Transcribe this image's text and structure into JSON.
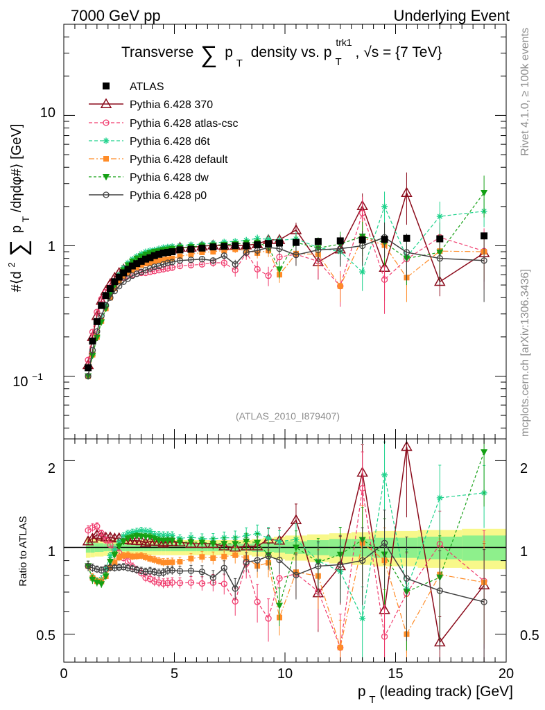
{
  "header": {
    "left": "7000 GeV pp",
    "right": "Underlying Event"
  },
  "side": {
    "rivet": "Rivet 4.1.0, ≥ 100k events",
    "mcplots": "mcplots.cern.ch [arXiv:1306.3436]"
  },
  "colors": {
    "atlas": "#000000",
    "p370": "#8b0c1c",
    "atlas_csc": "#f03c6e",
    "d6t": "#1ed28c",
    "default": "#ff8c28",
    "dw": "#14a014",
    "p0": "#404040",
    "band_inner": "#8ef08c",
    "band_outer": "#f8f88a"
  },
  "chart_data": [
    {
      "id": "main",
      "type": "line",
      "title": "Transverse ∑ p_T density vs. p_T^trk1, √s = {7 TeV}",
      "title_parts": {
        "pre": "Transverse",
        "sum": "∑",
        "p": "p",
        "sub_t": "T",
        "mid": "density vs. p",
        "sup_trk1": "trk1",
        "sub_t2": "T",
        "post": ", √s = {7 TeV}"
      },
      "ylabel": "#⟨d² ∑ p_T /dηdφ#⟩ [GeV]",
      "ylabel_parts": {
        "pre": "#⟨d",
        "sup2": "2",
        "sum": "∑",
        "p": "p",
        "sub_t": "T",
        "post": " /dηdφ#⟩ [GeV]"
      },
      "analysis_tag": "(ATLAS_2010_I879407)",
      "yscale": "log",
      "xlim": [
        0,
        20
      ],
      "ylim": [
        0.033,
        50
      ],
      "yticks": [
        0.1,
        1,
        10
      ],
      "ytick_labels": {
        "one": "1",
        "ten": "10",
        "tenth_base": "10",
        "tenth_exp": "−1"
      },
      "legend_position": "top-left",
      "legend": [
        "ATLAS",
        "Pythia 6.428 370",
        "Pythia 6.428 atlas-csc",
        "Pythia 6.428 d6t",
        "Pythia 6.428 default",
        "Pythia 6.428 dw",
        "Pythia 6.428 p0"
      ],
      "x": [
        1.1,
        1.3,
        1.5,
        1.7,
        1.9,
        2.1,
        2.3,
        2.5,
        2.7,
        2.9,
        3.1,
        3.3,
        3.5,
        3.7,
        3.9,
        4.1,
        4.3,
        4.5,
        4.7,
        4.9,
        5.25,
        5.75,
        6.25,
        6.75,
        7.25,
        7.75,
        8.25,
        8.75,
        9.25,
        9.75,
        10.5,
        11.5,
        12.5,
        13.5,
        14.5,
        15.5,
        17.0,
        19.0
      ],
      "series": [
        {
          "key": "atlas",
          "name": "ATLAS",
          "marker": "square-filled",
          "values": [
            0.116,
            0.186,
            0.262,
            0.348,
            0.415,
            0.47,
            0.53,
            0.575,
            0.62,
            0.66,
            0.7,
            0.73,
            0.76,
            0.79,
            0.81,
            0.84,
            0.86,
            0.88,
            0.89,
            0.9,
            0.93,
            0.94,
            0.96,
            0.98,
            0.99,
            1.0,
            1.0,
            1.02,
            1.04,
            1.05,
            1.06,
            1.08,
            1.09,
            1.11,
            1.12,
            1.14,
            1.13,
            1.19
          ]
        },
        {
          "key": "p370",
          "name": "Pythia 6.428 370",
          "marker": "triangle-open",
          "lw": 1.5,
          "values": [
            0.122,
            0.2,
            0.29,
            0.38,
            0.45,
            0.51,
            0.57,
            0.62,
            0.66,
            0.7,
            0.74,
            0.77,
            0.8,
            0.82,
            0.85,
            0.88,
            0.9,
            0.91,
            0.93,
            0.94,
            0.97,
            0.97,
            0.99,
            1.01,
            1.0,
            1.0,
            1.01,
            1.03,
            1.11,
            1.11,
            1.32,
            0.75,
            0.94,
            2.02,
            0.68,
            2.55,
            0.53,
            0.88
          ],
          "err": [
            0.004,
            0.006,
            0.008,
            0.01,
            0.012,
            0.013,
            0.015,
            0.016,
            0.017,
            0.018,
            0.02,
            0.021,
            0.022,
            0.023,
            0.024,
            0.025,
            0.026,
            0.027,
            0.028,
            0.03,
            0.03,
            0.035,
            0.04,
            0.045,
            0.05,
            0.06,
            0.07,
            0.08,
            0.1,
            0.12,
            0.18,
            0.2,
            0.25,
            0.5,
            0.3,
            1.1,
            0.12,
            0.35
          ]
        },
        {
          "key": "atlas_csc",
          "name": "Pythia 6.428 atlas-csc",
          "marker": "circle-open",
          "dash": "5,3",
          "values": [
            0.133,
            0.218,
            0.31,
            0.39,
            0.44,
            0.48,
            0.52,
            0.55,
            0.57,
            0.59,
            0.6,
            0.61,
            0.62,
            0.62,
            0.63,
            0.64,
            0.65,
            0.66,
            0.67,
            0.68,
            0.7,
            0.71,
            0.72,
            0.74,
            0.74,
            0.65,
            0.88,
            0.66,
            0.59,
            0.82,
            0.86,
            0.76,
            0.49,
            1.78,
            0.55,
            0.79,
            1.16,
            0.91
          ],
          "err": [
            0.005,
            0.007,
            0.009,
            0.01,
            0.012,
            0.013,
            0.014,
            0.015,
            0.016,
            0.017,
            0.018,
            0.019,
            0.02,
            0.021,
            0.022,
            0.023,
            0.024,
            0.025,
            0.026,
            0.027,
            0.03,
            0.035,
            0.04,
            0.05,
            0.06,
            0.07,
            0.1,
            0.1,
            0.1,
            0.15,
            0.15,
            0.2,
            0.15,
            0.6,
            0.25,
            0.3,
            0.35,
            0.45
          ]
        },
        {
          "key": "d6t",
          "name": "Pythia 6.428 d6t",
          "marker": "star",
          "dash": "5,3",
          "values": [
            0.1,
            0.145,
            0.2,
            0.27,
            0.35,
            0.44,
            0.52,
            0.6,
            0.68,
            0.74,
            0.79,
            0.83,
            0.87,
            0.9,
            0.92,
            0.93,
            0.95,
            0.97,
            0.98,
            0.99,
            1.0,
            1.02,
            1.03,
            1.05,
            1.07,
            1.08,
            1.1,
            1.14,
            1.12,
            1.1,
            1.13,
            0.97,
            0.9,
            0.63,
            2.0,
            0.82,
            1.68,
            1.84
          ],
          "err": [
            0.004,
            0.005,
            0.006,
            0.008,
            0.01,
            0.012,
            0.014,
            0.016,
            0.017,
            0.018,
            0.02,
            0.021,
            0.022,
            0.023,
            0.024,
            0.025,
            0.026,
            0.027,
            0.028,
            0.03,
            0.03,
            0.035,
            0.04,
            0.045,
            0.05,
            0.06,
            0.07,
            0.08,
            0.1,
            0.1,
            0.15,
            0.15,
            0.2,
            0.18,
            0.6,
            0.3,
            0.5,
            0.45
          ]
        },
        {
          "key": "default",
          "name": "Pythia 6.428 default",
          "marker": "square-filled-small",
          "dash": "8,3,2,3",
          "values": [
            0.1,
            0.146,
            0.2,
            0.265,
            0.33,
            0.4,
            0.47,
            0.53,
            0.58,
            0.62,
            0.65,
            0.68,
            0.71,
            0.73,
            0.74,
            0.76,
            0.77,
            0.78,
            0.79,
            0.8,
            0.83,
            0.86,
            0.89,
            0.9,
            0.92,
            0.94,
            0.92,
            0.88,
            0.92,
            0.6,
            0.87,
            0.86,
            0.49,
            1.15,
            1.01,
            0.57,
            0.91,
            0.9
          ],
          "err": [
            0.004,
            0.005,
            0.006,
            0.008,
            0.01,
            0.012,
            0.014,
            0.015,
            0.016,
            0.017,
            0.018,
            0.019,
            0.02,
            0.021,
            0.022,
            0.023,
            0.024,
            0.025,
            0.026,
            0.027,
            0.03,
            0.035,
            0.04,
            0.045,
            0.05,
            0.06,
            0.07,
            0.08,
            0.1,
            0.08,
            0.15,
            0.2,
            0.12,
            0.4,
            0.3,
            0.2,
            0.3,
            0.35
          ]
        },
        {
          "key": "dw",
          "name": "Pythia 6.428 dw",
          "marker": "triangle-down-filled",
          "dash": "4,3",
          "values": [
            0.1,
            0.144,
            0.198,
            0.26,
            0.33,
            0.42,
            0.5,
            0.58,
            0.65,
            0.71,
            0.76,
            0.8,
            0.83,
            0.86,
            0.88,
            0.9,
            0.91,
            0.93,
            0.94,
            0.95,
            0.97,
            0.98,
            1.0,
            1.01,
            1.02,
            1.03,
            1.05,
            1.06,
            0.98,
            0.66,
            1.06,
            0.96,
            1.03,
            1.18,
            1.06,
            0.8,
            0.89,
            2.55
          ],
          "err": [
            0.004,
            0.005,
            0.006,
            0.008,
            0.01,
            0.012,
            0.014,
            0.016,
            0.017,
            0.018,
            0.02,
            0.021,
            0.022,
            0.023,
            0.024,
            0.025,
            0.026,
            0.027,
            0.028,
            0.03,
            0.03,
            0.035,
            0.04,
            0.045,
            0.05,
            0.06,
            0.07,
            0.08,
            0.1,
            0.1,
            0.15,
            0.2,
            0.25,
            0.35,
            0.35,
            0.3,
            0.35,
            0.9
          ]
        },
        {
          "key": "p0",
          "name": "Pythia 6.428 p0",
          "marker": "circle-open",
          "lw": 1.5,
          "values": [
            0.1,
            0.158,
            0.22,
            0.29,
            0.35,
            0.4,
            0.45,
            0.49,
            0.53,
            0.56,
            0.59,
            0.61,
            0.63,
            0.65,
            0.67,
            0.69,
            0.7,
            0.72,
            0.74,
            0.75,
            0.77,
            0.78,
            0.79,
            0.77,
            0.84,
            0.72,
            0.89,
            0.92,
            0.97,
            0.95,
            0.85,
            0.93,
            0.95,
            1.0,
            1.16,
            0.89,
            0.8,
            0.77
          ],
          "err": [
            0.004,
            0.005,
            0.006,
            0.008,
            0.01,
            0.012,
            0.013,
            0.014,
            0.015,
            0.016,
            0.017,
            0.018,
            0.019,
            0.02,
            0.021,
            0.022,
            0.023,
            0.024,
            0.025,
            0.026,
            0.03,
            0.035,
            0.04,
            0.045,
            0.05,
            0.06,
            0.07,
            0.08,
            0.1,
            0.1,
            0.15,
            0.2,
            0.25,
            0.3,
            0.35,
            0.35,
            0.3,
            0.4
          ]
        }
      ]
    },
    {
      "id": "ratio",
      "type": "line",
      "ylabel": "Ratio to ATLAS",
      "xlabel": "p_T (leading track) [GeV]",
      "xlabel_parts": {
        "p": "p",
        "sub_t": "T",
        "post": " (leading track) [GeV]"
      },
      "yscale": "log",
      "xlim": [
        0,
        20
      ],
      "ylim": [
        0.4,
        2.38
      ],
      "yticks": [
        0.5,
        1,
        2
      ],
      "ytick_labels": [
        "0.5",
        "1",
        "2"
      ],
      "xticks": [
        0,
        5,
        10,
        15,
        20
      ],
      "xtick_labels": [
        "0",
        "5",
        "10",
        "15",
        "20"
      ],
      "reference_line": 1,
      "uncertainty_bands": {
        "x_edges": [
          1.0,
          1.2,
          1.4,
          1.6,
          1.8,
          2.0,
          2.2,
          2.4,
          2.6,
          2.8,
          3.0,
          3.2,
          3.4,
          3.6,
          3.8,
          4.0,
          4.2,
          4.4,
          4.6,
          4.8,
          5.0,
          5.5,
          6.0,
          6.5,
          7.0,
          7.5,
          8.0,
          8.5,
          9.0,
          9.5,
          10.0,
          11.0,
          12.0,
          13.0,
          14.0,
          15.0,
          16.0,
          18.0,
          20.0
        ],
        "inner": [
          0.04,
          0.04,
          0.035,
          0.035,
          0.03,
          0.03,
          0.03,
          0.03,
          0.03,
          0.03,
          0.03,
          0.03,
          0.03,
          0.03,
          0.03,
          0.03,
          0.03,
          0.03,
          0.03,
          0.03,
          0.03,
          0.03,
          0.03,
          0.03,
          0.03,
          0.03,
          0.03,
          0.035,
          0.035,
          0.04,
          0.05,
          0.06,
          0.07,
          0.07,
          0.08,
          0.08,
          0.09,
          0.1
        ],
        "outer": [
          0.08,
          0.075,
          0.07,
          0.07,
          0.065,
          0.065,
          0.065,
          0.06,
          0.06,
          0.06,
          0.06,
          0.06,
          0.06,
          0.06,
          0.06,
          0.06,
          0.06,
          0.06,
          0.06,
          0.06,
          0.06,
          0.06,
          0.06,
          0.06,
          0.06,
          0.06,
          0.06,
          0.07,
          0.08,
          0.09,
          0.1,
          0.11,
          0.12,
          0.13,
          0.14,
          0.14,
          0.15,
          0.16
        ]
      }
    }
  ]
}
